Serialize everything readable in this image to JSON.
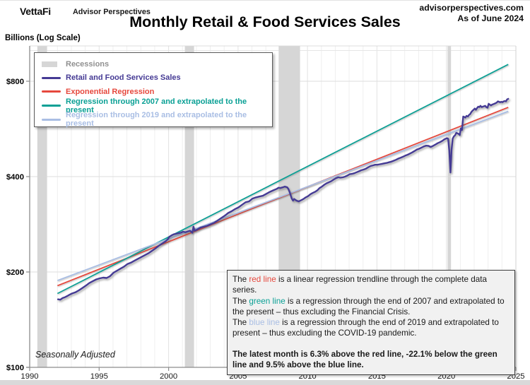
{
  "header": {
    "brand": "VettaFi",
    "brand_sub": "Advisor Perspectives",
    "site": "advisorperspectives.com",
    "as_of": "As of June 2024",
    "title": "Monthly Retail & Food Services Sales"
  },
  "colors": {
    "data": "#453a94",
    "red": "#e6483d",
    "green": "#0aa095",
    "blue": "#a9bee4",
    "recession_fill": "#d6d6d6",
    "recession_text": "#909090"
  },
  "legend": {
    "items": [
      {
        "label": "Recessions",
        "swatch": "rect",
        "color_key": "recession_fill",
        "text_key": "recession_text"
      },
      {
        "label": "Retail and Food Services Sales",
        "swatch": "line",
        "color_key": "data",
        "text_key": "data"
      },
      {
        "label": "Exponential Regression",
        "swatch": "line",
        "color_key": "red",
        "text_key": "red"
      },
      {
        "label": "Regression through 2007 and extrapolated to the present",
        "swatch": "line",
        "color_key": "green",
        "text_key": "green"
      },
      {
        "label": "Regression through 2019 and extrapolated to the present",
        "swatch": "line",
        "color_key": "blue",
        "text_key": "blue"
      }
    ]
  },
  "note_box": {
    "lines": [
      {
        "segments": [
          {
            "t": "The "
          },
          {
            "t": "red line",
            "c": "red"
          },
          {
            "t": " is a linear regression trendline through the complete data series."
          }
        ]
      },
      {
        "segments": [
          {
            "t": "The "
          },
          {
            "t": "green line",
            "c": "green"
          },
          {
            "t": " is a regression through the end of 2007 and extrapolated to the present – thus excluding the Financial Crisis."
          }
        ]
      },
      {
        "segments": [
          {
            "t": "The "
          },
          {
            "t": "blue line",
            "c": "blue"
          },
          {
            "t": " is a regression through the end of 2019 and extrapolated to present – thus excluding the COVID-19 pandemic."
          }
        ]
      },
      {
        "segments": [
          {
            "t": ""
          }
        ],
        "gap": true
      },
      {
        "segments": [
          {
            "t": "The latest month is 6.3% above the red line, -22.1% below the green line and 9.5% above the blue line.",
            "b": true
          }
        ]
      }
    ]
  },
  "chart_data": {
    "type": "line",
    "title": "Monthly Retail & Food Services Sales",
    "footnote": "Seasonally Adjusted",
    "y_axis": {
      "title": "Billions (Log Scale)",
      "scale": "log",
      "range": [
        100,
        1000
      ],
      "ticks": [
        {
          "value": 100,
          "label": "$100"
        },
        {
          "value": 200,
          "label": "$200"
        },
        {
          "value": 400,
          "label": "$400"
        },
        {
          "value": 800,
          "label": "$800"
        }
      ],
      "minor_gridlines": [
        1000
      ]
    },
    "x_axis": {
      "range": [
        1990,
        2025
      ],
      "gridline_step_years": 1,
      "ticks": [
        {
          "value": 1990,
          "label": "1990"
        },
        {
          "value": 1995,
          "label": "1995"
        },
        {
          "value": 2000,
          "label": "2000"
        },
        {
          "value": 2005,
          "label": "2005"
        },
        {
          "value": 2010,
          "label": "2010"
        },
        {
          "value": 2015,
          "label": "2015"
        },
        {
          "value": 2020,
          "label": "2020"
        },
        {
          "value": 2025,
          "label": "2025"
        }
      ]
    },
    "recessions": [
      {
        "start": 1990.55,
        "end": 1991.25
      },
      {
        "start": 2001.17,
        "end": 2001.83
      },
      {
        "start": 2007.92,
        "end": 2009.46
      },
      {
        "start": 2020.08,
        "end": 2020.33
      }
    ],
    "series": {
      "name": "Retail and Food Services Sales",
      "unit": "billions of dollars",
      "points": [
        [
          1992.04,
          164
        ],
        [
          1992.21,
          163.5
        ],
        [
          1992.37,
          165.5
        ],
        [
          1992.54,
          166.5
        ],
        [
          1992.71,
          168
        ],
        [
          1992.87,
          169.5
        ],
        [
          1993.04,
          171
        ],
        [
          1993.29,
          172.5
        ],
        [
          1993.54,
          175
        ],
        [
          1993.79,
          178
        ],
        [
          1994.04,
          181
        ],
        [
          1994.29,
          184.5
        ],
        [
          1994.54,
          187
        ],
        [
          1994.79,
          189.5
        ],
        [
          1995.04,
          191
        ],
        [
          1995.29,
          192
        ],
        [
          1995.54,
          191.5
        ],
        [
          1995.79,
          194
        ],
        [
          1996.04,
          199
        ],
        [
          1996.29,
          202
        ],
        [
          1996.54,
          205
        ],
        [
          1996.79,
          208
        ],
        [
          1997.04,
          212
        ],
        [
          1997.29,
          214
        ],
        [
          1997.54,
          217
        ],
        [
          1997.79,
          220
        ],
        [
          1998.04,
          223
        ],
        [
          1998.29,
          226
        ],
        [
          1998.54,
          229
        ],
        [
          1998.79,
          233
        ],
        [
          1999.04,
          237
        ],
        [
          1999.29,
          242
        ],
        [
          1999.54,
          246
        ],
        [
          1999.79,
          250
        ],
        [
          1999.96,
          254
        ],
        [
          2000.04,
          258
        ],
        [
          2000.21,
          261
        ],
        [
          2000.37,
          263
        ],
        [
          2000.54,
          264
        ],
        [
          2000.71,
          265
        ],
        [
          2000.87,
          266
        ],
        [
          2001.04,
          268
        ],
        [
          2001.21,
          267
        ],
        [
          2001.37,
          268.5
        ],
        [
          2001.54,
          270
        ],
        [
          2001.71,
          266
        ],
        [
          2001.79,
          278
        ],
        [
          2001.87,
          270
        ],
        [
          2002.04,
          272
        ],
        [
          2002.29,
          276
        ],
        [
          2002.54,
          278
        ],
        [
          2002.79,
          280
        ],
        [
          2003.04,
          283
        ],
        [
          2003.29,
          286
        ],
        [
          2003.54,
          291
        ],
        [
          2003.79,
          296
        ],
        [
          2004.04,
          301
        ],
        [
          2004.29,
          307
        ],
        [
          2004.54,
          311
        ],
        [
          2004.79,
          316
        ],
        [
          2005.04,
          320
        ],
        [
          2005.29,
          326
        ],
        [
          2005.54,
          332
        ],
        [
          2005.79,
          334
        ],
        [
          2006.04,
          341
        ],
        [
          2006.29,
          344
        ],
        [
          2006.54,
          346
        ],
        [
          2006.79,
          348
        ],
        [
          2007.04,
          353
        ],
        [
          2007.29,
          358
        ],
        [
          2007.54,
          362
        ],
        [
          2007.79,
          366
        ],
        [
          2007.92,
          369
        ],
        [
          2008.04,
          368
        ],
        [
          2008.21,
          370
        ],
        [
          2008.37,
          372
        ],
        [
          2008.54,
          370
        ],
        [
          2008.62,
          366
        ],
        [
          2008.71,
          358
        ],
        [
          2008.79,
          349
        ],
        [
          2008.87,
          341
        ],
        [
          2008.96,
          336
        ],
        [
          2009.04,
          340
        ],
        [
          2009.21,
          336
        ],
        [
          2009.37,
          334
        ],
        [
          2009.54,
          337
        ],
        [
          2009.71,
          340
        ],
        [
          2009.87,
          344
        ],
        [
          2010.04,
          347
        ],
        [
          2010.21,
          352
        ],
        [
          2010.37,
          355
        ],
        [
          2010.54,
          358
        ],
        [
          2010.71,
          362
        ],
        [
          2010.87,
          368
        ],
        [
          2011.04,
          372
        ],
        [
          2011.21,
          377
        ],
        [
          2011.37,
          381
        ],
        [
          2011.54,
          384
        ],
        [
          2011.71,
          387
        ],
        [
          2011.87,
          391
        ],
        [
          2012.04,
          395
        ],
        [
          2012.21,
          398
        ],
        [
          2012.37,
          397
        ],
        [
          2012.54,
          398
        ],
        [
          2012.71,
          400
        ],
        [
          2012.87,
          403
        ],
        [
          2013.04,
          407
        ],
        [
          2013.21,
          408
        ],
        [
          2013.37,
          410
        ],
        [
          2013.54,
          413
        ],
        [
          2013.71,
          416
        ],
        [
          2013.87,
          419
        ],
        [
          2014.04,
          421
        ],
        [
          2014.21,
          424
        ],
        [
          2014.37,
          428
        ],
        [
          2014.54,
          432
        ],
        [
          2014.71,
          434
        ],
        [
          2014.87,
          436
        ],
        [
          2015.04,
          436
        ],
        [
          2015.21,
          437.5
        ],
        [
          2015.37,
          439
        ],
        [
          2015.54,
          440.5
        ],
        [
          2015.71,
          442
        ],
        [
          2015.87,
          444
        ],
        [
          2016.04,
          446
        ],
        [
          2016.21,
          449
        ],
        [
          2016.37,
          452
        ],
        [
          2016.54,
          456
        ],
        [
          2016.71,
          459
        ],
        [
          2016.87,
          462
        ],
        [
          2017.04,
          466
        ],
        [
          2017.21,
          469
        ],
        [
          2017.37,
          473
        ],
        [
          2017.54,
          477
        ],
        [
          2017.71,
          482
        ],
        [
          2017.87,
          487
        ],
        [
          2018.04,
          490
        ],
        [
          2018.21,
          494
        ],
        [
          2018.37,
          498
        ],
        [
          2018.54,
          501
        ],
        [
          2018.71,
          500
        ],
        [
          2018.87,
          496
        ],
        [
          2019.04,
          500
        ],
        [
          2019.21,
          505
        ],
        [
          2019.37,
          510
        ],
        [
          2019.54,
          514
        ],
        [
          2019.71,
          519
        ],
        [
          2019.87,
          525
        ],
        [
          2020.04,
          529
        ],
        [
          2020.12,
          527
        ],
        [
          2020.21,
          483
        ],
        [
          2020.29,
          412
        ],
        [
          2020.37,
          486
        ],
        [
          2020.45,
          527
        ],
        [
          2020.54,
          536
        ],
        [
          2020.62,
          540
        ],
        [
          2020.71,
          550
        ],
        [
          2020.79,
          548
        ],
        [
          2020.87,
          546
        ],
        [
          2020.96,
          541
        ],
        [
          2021.04,
          568
        ],
        [
          2021.12,
          561
        ],
        [
          2021.21,
          619
        ],
        [
          2021.29,
          617
        ],
        [
          2021.37,
          614
        ],
        [
          2021.45,
          622
        ],
        [
          2021.54,
          619
        ],
        [
          2021.62,
          626
        ],
        [
          2021.71,
          630
        ],
        [
          2021.79,
          639
        ],
        [
          2021.87,
          645
        ],
        [
          2021.96,
          650
        ],
        [
          2022.04,
          656
        ],
        [
          2022.12,
          650
        ],
        [
          2022.21,
          659
        ],
        [
          2022.29,
          665
        ],
        [
          2022.37,
          663
        ],
        [
          2022.45,
          669
        ],
        [
          2022.54,
          663
        ],
        [
          2022.62,
          665
        ],
        [
          2022.71,
          667
        ],
        [
          2022.79,
          669
        ],
        [
          2022.87,
          663
        ],
        [
          2022.96,
          660
        ],
        [
          2023.04,
          679
        ],
        [
          2023.12,
          675
        ],
        [
          2023.21,
          671
        ],
        [
          2023.29,
          675
        ],
        [
          2023.37,
          677
        ],
        [
          2023.45,
          679
        ],
        [
          2023.54,
          682
        ],
        [
          2023.62,
          685
        ],
        [
          2023.71,
          691
        ],
        [
          2023.79,
          689
        ],
        [
          2023.87,
          687
        ],
        [
          2023.96,
          689
        ],
        [
          2024.04,
          687
        ],
        [
          2024.12,
          691
        ],
        [
          2024.21,
          693
        ],
        [
          2024.29,
          691
        ],
        [
          2024.37,
          701
        ],
        [
          2024.45,
          704
        ]
      ]
    },
    "regressions": [
      {
        "name": "Exponential Regression",
        "color_key": "red",
        "start": [
          1992.0,
          181
        ],
        "end": [
          2024.45,
          662
        ]
      },
      {
        "name": "Regression through 2007 and extrapolated to the present",
        "color_key": "green",
        "start": [
          1992.0,
          171
        ],
        "end": [
          2024.45,
          904
        ]
      },
      {
        "name": "Regression through 2019 and extrapolated to the present",
        "color_key": "blue",
        "start": [
          1992.0,
          188
        ],
        "end": [
          2024.45,
          643
        ]
      }
    ],
    "latest_month_stats": {
      "vs_red_line_pct": 6.3,
      "vs_green_line_pct": -22.1,
      "vs_blue_line_pct": 9.5
    }
  }
}
